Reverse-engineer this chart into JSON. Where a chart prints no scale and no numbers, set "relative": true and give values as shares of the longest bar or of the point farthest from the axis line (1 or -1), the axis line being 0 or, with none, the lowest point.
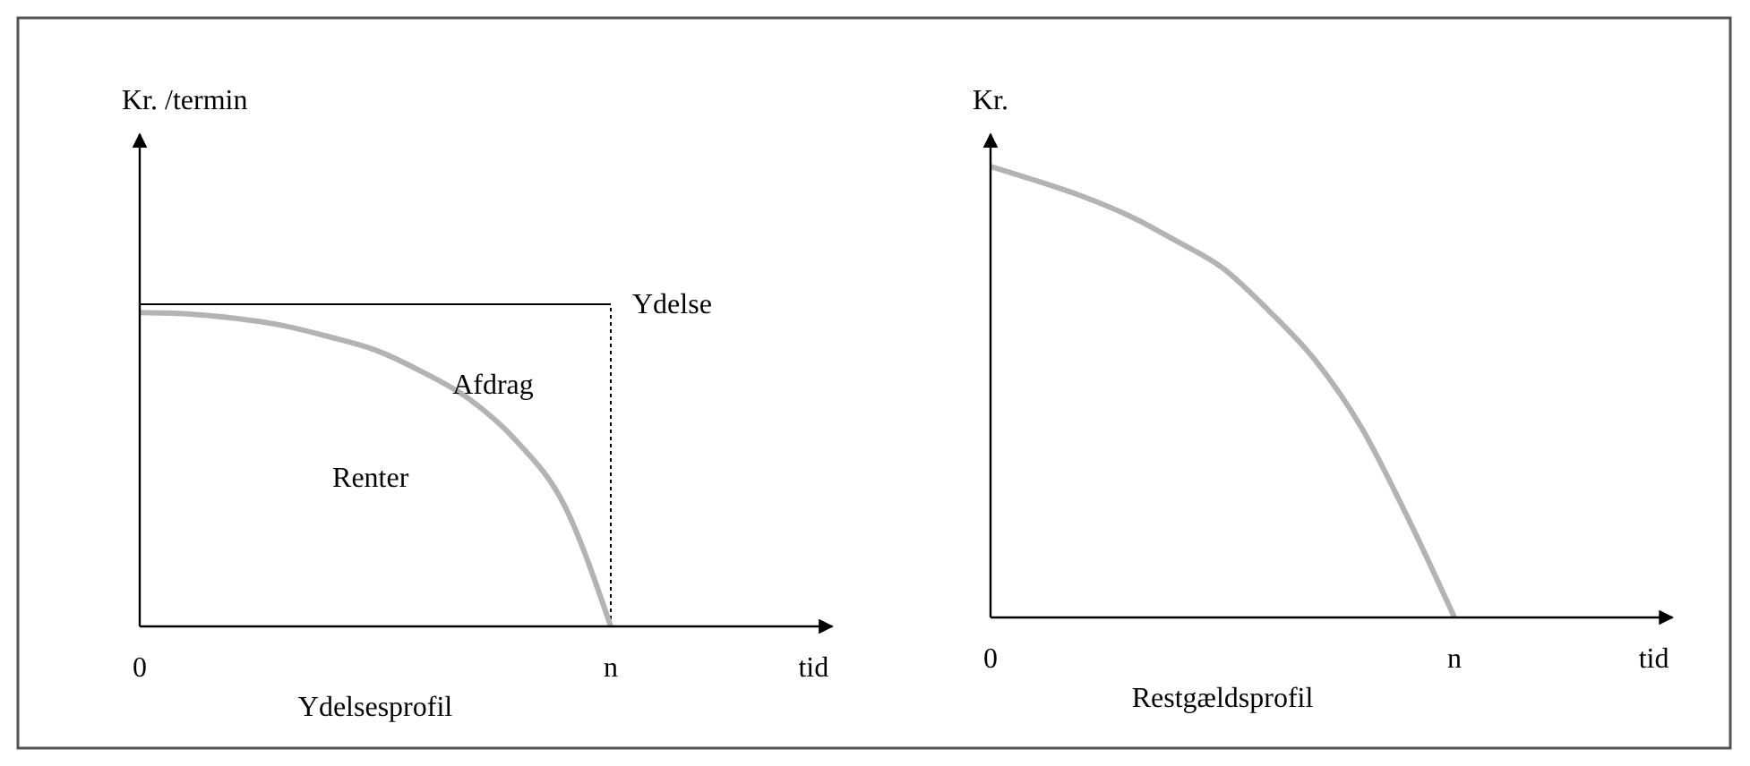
{
  "chart_data": [
    {
      "type": "line",
      "title": "Ydelsesprofil",
      "xlabel": "tid",
      "ylabel": "Kr. /termin",
      "relative": true,
      "tick_labels": "x",
      "categories": [
        "0",
        null,
        null,
        null,
        null,
        null,
        null,
        null,
        null,
        null,
        "n",
        null,
        null,
        null,
        null
      ],
      "series": [
        {
          "name": "Ydelse",
          "color": "#000000",
          "values": [
            1,
            1,
            1,
            1,
            1,
            1,
            1,
            1,
            1,
            1,
            1,
            null,
            null,
            null,
            null
          ]
        },
        {
          "color": "#b3b3b3",
          "values": [
            0.974,
            0.97,
            0.957,
            0.935,
            0.9,
            0.858,
            0.79,
            0.705,
            0.575,
            0.38,
            0,
            null,
            null,
            null,
            null
          ]
        }
      ],
      "ref_lines": [
        {
          "axis": "x",
          "value": "n",
          "color": "#000000",
          "line_style": "dotted"
        }
      ],
      "annotations": [
        "Afdrag",
        "Renter"
      ]
    },
    {
      "type": "line",
      "title": "Restgældsprofil",
      "xlabel": "tid",
      "ylabel": "Kr.",
      "relative": true,
      "tick_labels": "x",
      "categories": [
        "0",
        null,
        null,
        null,
        null,
        null,
        null,
        null,
        null,
        null,
        "n",
        null,
        null,
        null,
        null
      ],
      "series": [
        {
          "color": "#b3b3b3",
          "values": [
            1,
            0.968,
            0.933,
            0.89,
            0.835,
            0.775,
            0.68,
            0.57,
            0.42,
            0.22,
            0,
            null,
            null,
            null,
            null
          ]
        }
      ]
    }
  ]
}
